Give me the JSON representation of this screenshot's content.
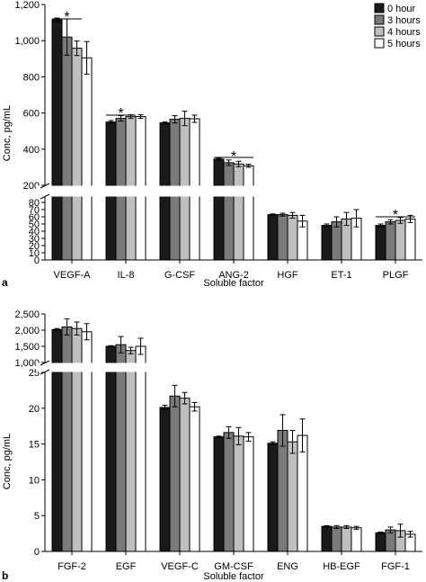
{
  "colors": {
    "0 hour": "#1a1a1a",
    "3 hours": "#7a7a7a",
    "4 hours": "#bfbfbf",
    "5 hours": "#ffffff"
  },
  "chart_data": [
    {
      "panel": "a",
      "type": "bar",
      "xlabel": "Soluble factor",
      "ylabel": "Conc, pg/mL",
      "legend": {
        "placement": "top-right",
        "entries": [
          "0 hour",
          "3 hours",
          "4 hours",
          "5 hours"
        ]
      },
      "axis_break": true,
      "upper_axis": {
        "ylim": [
          200,
          1200
        ],
        "ticks": [
          "200",
          "400",
          "600",
          "800",
          "1,000",
          "1,200"
        ]
      },
      "lower_axis": {
        "ylim": [
          0,
          90
        ],
        "ticks": [
          "0",
          "10",
          "20",
          "30",
          "40",
          "50",
          "60",
          "70",
          "80"
        ]
      },
      "categories": [
        "VEGF-A",
        "IL-8",
        "G-CSF",
        "ANG-2",
        "HGF",
        "ET-1",
        "PLGF"
      ],
      "series": [
        {
          "name": "0 hour",
          "values": [
            1115,
            550,
            545,
            345,
            63,
            48,
            48
          ],
          "errors": [
            10,
            8,
            5,
            5,
            1,
            2,
            2
          ]
        },
        {
          "name": "3 hours",
          "values": [
            1020,
            570,
            565,
            325,
            63,
            53,
            53
          ],
          "errors": [
            100,
            15,
            20,
            15,
            2,
            7,
            3
          ]
        },
        {
          "name": "4 hours",
          "values": [
            958,
            580,
            570,
            318,
            62,
            57,
            55
          ],
          "errors": [
            40,
            10,
            40,
            15,
            4,
            9,
            4
          ]
        },
        {
          "name": "5 hours",
          "values": [
            905,
            580,
            568,
            308,
            54,
            58,
            57
          ],
          "errors": [
            90,
            10,
            20,
            8,
            8,
            12,
            5
          ]
        }
      ],
      "annotations": [
        {
          "text": "*",
          "category": "VEGF-A"
        },
        {
          "text": "*",
          "category": "IL-8"
        },
        {
          "text": "*",
          "category": "ANG-2"
        },
        {
          "text": "*",
          "category": "PLGF"
        }
      ],
      "panel_label": "a"
    },
    {
      "panel": "b",
      "type": "bar",
      "xlabel": "Soluble factor",
      "ylabel": "Conc, pg/mL",
      "axis_break": true,
      "upper_axis": {
        "ylim": [
          1000,
          2500
        ],
        "ticks": [
          "1,000",
          "1,500",
          "2,000",
          "2,500"
        ]
      },
      "lower_axis": {
        "ylim": [
          0,
          25
        ],
        "ticks": [
          "0",
          "5",
          "10",
          "15",
          "20",
          "25"
        ]
      },
      "categories": [
        "FGF-2",
        "EGF",
        "VEGF-C",
        "GM-CSF",
        "ENG",
        "HB-EGF",
        "FGF-1"
      ],
      "series": [
        {
          "name": "0 hour",
          "values": [
            2020,
            1500,
            20.1,
            16.0,
            15.1,
            3.5,
            2.6
          ],
          "errors": [
            30,
            20,
            0.3,
            0.1,
            0.2,
            0.1,
            0.1
          ]
        },
        {
          "name": "3 hours",
          "values": [
            2100,
            1550,
            21.7,
            16.6,
            16.9,
            3.4,
            3.0
          ],
          "errors": [
            250,
            250,
            1.5,
            0.8,
            2.2,
            0.2,
            0.4
          ]
        },
        {
          "name": "4 hours",
          "values": [
            2050,
            1370,
            21.4,
            16.1,
            15.3,
            3.4,
            2.9
          ],
          "errors": [
            200,
            100,
            0.8,
            1.2,
            1.6,
            0.2,
            0.9
          ]
        },
        {
          "name": "5 hours",
          "values": [
            1950,
            1500,
            20.2,
            16.0,
            16.2,
            3.3,
            2.4
          ],
          "errors": [
            250,
            250,
            0.6,
            0.6,
            2.3,
            0.2,
            0.4
          ]
        }
      ],
      "panel_label": "b"
    }
  ]
}
